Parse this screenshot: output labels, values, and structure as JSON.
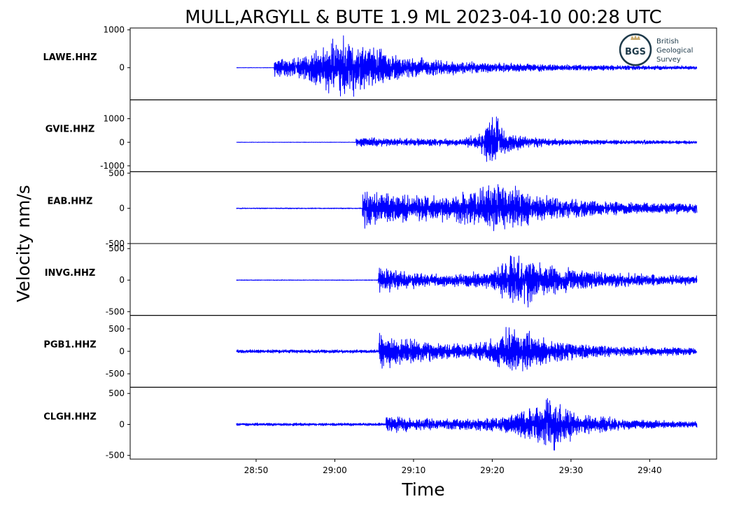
{
  "chart_data": {
    "type": "line",
    "title": "MULL,ARGYLL & BUTE 1.9 ML   2023-04-10 00:28 UTC",
    "xlabel": "Time",
    "ylabel": "Velocity nm/s",
    "x_range_seconds": [
      1714.0,
      1788.5
    ],
    "x_ticks": [
      {
        "value": 1730,
        "label": "28:50"
      },
      {
        "value": 1740,
        "label": "29:00"
      },
      {
        "value": 1750,
        "label": "29:10"
      },
      {
        "value": 1760,
        "label": "29:20"
      },
      {
        "value": 1770,
        "label": "29:30"
      },
      {
        "value": 1780,
        "label": "29:40"
      }
    ],
    "trace_start": 1727.5,
    "trace_end": 1786.0,
    "line_color": "#0000ff",
    "panels": [
      {
        "name": "LAWE.HHZ",
        "ylim": [
          -850,
          1050
        ],
        "yticks": [
          {
            "value": 1000,
            "label": "1000"
          },
          {
            "value": 0,
            "label": "0"
          }
        ],
        "noise": 6,
        "onset": 1732.3,
        "envelope": [
          {
            "t": 1732.3,
            "a": 380
          },
          {
            "t": 1734.0,
            "a": 300
          },
          {
            "t": 1736.5,
            "a": 400
          },
          {
            "t": 1740.0,
            "a": 950
          },
          {
            "t": 1742.0,
            "a": 820
          },
          {
            "t": 1744.0,
            "a": 720
          },
          {
            "t": 1746.0,
            "a": 560
          },
          {
            "t": 1748.0,
            "a": 380
          },
          {
            "t": 1753.0,
            "a": 250
          },
          {
            "t": 1760.0,
            "a": 150
          },
          {
            "t": 1770.0,
            "a": 90
          },
          {
            "t": 1786.0,
            "a": 55
          }
        ]
      },
      {
        "name": "GVIE.HHZ",
        "ylim": [
          -1250,
          1800
        ],
        "yticks": [
          {
            "value": 1000,
            "label": "1000"
          },
          {
            "value": 0,
            "label": "0"
          },
          {
            "value": -1000,
            "label": "-1000"
          }
        ],
        "noise": 10,
        "onset": 1742.7,
        "envelope": [
          {
            "t": 1742.7,
            "a": 240
          },
          {
            "t": 1748.0,
            "a": 190
          },
          {
            "t": 1756.0,
            "a": 170
          },
          {
            "t": 1758.5,
            "a": 450
          },
          {
            "t": 1760.0,
            "a": 1500
          },
          {
            "t": 1761.5,
            "a": 700
          },
          {
            "t": 1764.0,
            "a": 300
          },
          {
            "t": 1770.0,
            "a": 130
          },
          {
            "t": 1786.0,
            "a": 80
          }
        ]
      },
      {
        "name": "EAB.HHZ",
        "ylim": [
          -500,
          520
        ],
        "yticks": [
          {
            "value": 500,
            "label": "500"
          },
          {
            "value": 0,
            "label": "0"
          },
          {
            "value": -500,
            "label": "-500"
          }
        ],
        "noise": 8,
        "onset": 1743.5,
        "envelope": [
          {
            "t": 1743.5,
            "a": 300
          },
          {
            "t": 1746.0,
            "a": 270
          },
          {
            "t": 1750.0,
            "a": 210
          },
          {
            "t": 1755.0,
            "a": 220
          },
          {
            "t": 1758.0,
            "a": 310
          },
          {
            "t": 1760.0,
            "a": 460
          },
          {
            "t": 1762.0,
            "a": 390
          },
          {
            "t": 1766.0,
            "a": 220
          },
          {
            "t": 1775.0,
            "a": 110
          },
          {
            "t": 1786.0,
            "a": 85
          }
        ]
      },
      {
        "name": "INVG.HHZ",
        "ylim": [
          -560,
          580
        ],
        "yticks": [
          {
            "value": 500,
            "label": "500"
          },
          {
            "value": 0,
            "label": "0"
          },
          {
            "value": -500,
            "label": "-500"
          }
        ],
        "noise": 6,
        "onset": 1745.5,
        "envelope": [
          {
            "t": 1745.5,
            "a": 260
          },
          {
            "t": 1749.0,
            "a": 160
          },
          {
            "t": 1755.0,
            "a": 110
          },
          {
            "t": 1760.0,
            "a": 160
          },
          {
            "t": 1762.5,
            "a": 470
          },
          {
            "t": 1764.0,
            "a": 520
          },
          {
            "t": 1766.5,
            "a": 330
          },
          {
            "t": 1770.0,
            "a": 200
          },
          {
            "t": 1778.0,
            "a": 110
          },
          {
            "t": 1786.0,
            "a": 80
          }
        ]
      },
      {
        "name": "PGB1.HHZ",
        "ylim": [
          -800,
          800
        ],
        "yticks": [
          {
            "value": 500,
            "label": "500"
          },
          {
            "value": 0,
            "label": "0"
          },
          {
            "value": -500,
            "label": "-500"
          }
        ],
        "noise": 45,
        "onset": 1745.6,
        "envelope": [
          {
            "t": 1745.6,
            "a": 500
          },
          {
            "t": 1748.0,
            "a": 380
          },
          {
            "t": 1752.0,
            "a": 240
          },
          {
            "t": 1757.0,
            "a": 190
          },
          {
            "t": 1760.0,
            "a": 320
          },
          {
            "t": 1762.5,
            "a": 700
          },
          {
            "t": 1764.5,
            "a": 520
          },
          {
            "t": 1768.0,
            "a": 280
          },
          {
            "t": 1775.0,
            "a": 140
          },
          {
            "t": 1786.0,
            "a": 90
          }
        ]
      },
      {
        "name": "CLGH.HHZ",
        "ylim": [
          -560,
          600
        ],
        "yticks": [
          {
            "value": 500,
            "label": "500"
          },
          {
            "value": 0,
            "label": "0"
          },
          {
            "value": -500,
            "label": "-500"
          }
        ],
        "noise": 28,
        "onset": 1746.5,
        "envelope": [
          {
            "t": 1746.5,
            "a": 170
          },
          {
            "t": 1750.0,
            "a": 120
          },
          {
            "t": 1758.0,
            "a": 110
          },
          {
            "t": 1762.0,
            "a": 170
          },
          {
            "t": 1765.0,
            "a": 340
          },
          {
            "t": 1767.0,
            "a": 560
          },
          {
            "t": 1768.5,
            "a": 430
          },
          {
            "t": 1771.0,
            "a": 200
          },
          {
            "t": 1778.0,
            "a": 90
          },
          {
            "t": 1786.0,
            "a": 60
          }
        ]
      }
    ]
  },
  "logo": {
    "abbr": "BGS",
    "line1": "British",
    "line2": "Geological",
    "line3": "Survey",
    "ring_color": "#1e3a4a",
    "accent_color": "#c8a96a"
  }
}
